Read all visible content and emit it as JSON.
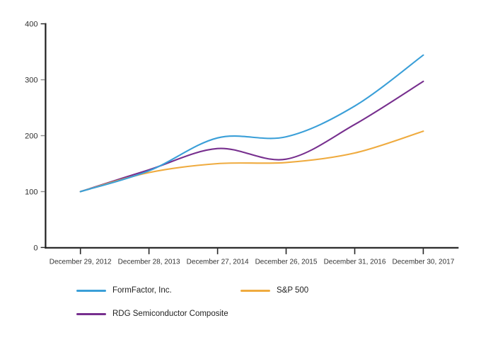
{
  "chart_data": {
    "type": "line",
    "title": "",
    "xlabel": "",
    "ylabel": "",
    "ylim": [
      0,
      400
    ],
    "grid": false,
    "legend_position": "bottom",
    "line_smoothing": true,
    "x_tick_labels": [
      "December 29, 2012",
      "December 28, 2013",
      "December 27, 2014",
      "December 26, 2015",
      "December 31, 2016",
      "December 30, 2017"
    ],
    "y_tick_labels": [
      "0",
      "100",
      "200",
      "300",
      "400"
    ],
    "series": [
      {
        "name": "FormFactor, Inc.",
        "color": "#3A9FD8",
        "values": [
          100,
          137,
          196,
          198,
          253,
          344
        ]
      },
      {
        "name": "S&P 500",
        "color": "#EFAB3F",
        "values": [
          100,
          134,
          150,
          152,
          169,
          208
        ]
      },
      {
        "name": "RDG Semiconductor Composite",
        "color": "#772F8E",
        "values": [
          100,
          139,
          177,
          158,
          220,
          297
        ]
      }
    ],
    "colors": {
      "axis": "#1f1f1f",
      "x_tick": "#262626",
      "y_tick": "#8c8c8c",
      "text": "#303030"
    }
  }
}
